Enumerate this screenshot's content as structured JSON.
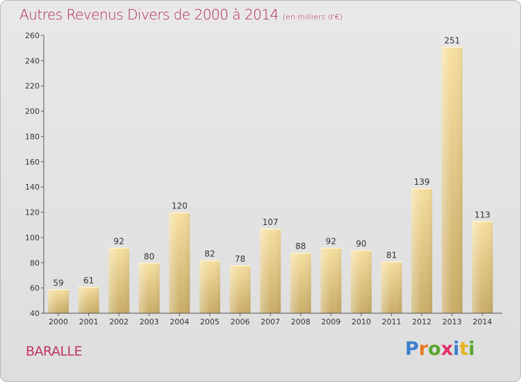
{
  "header": {
    "title": "Autres Revenus Divers de 2000 à 2014",
    "unit": "(en milliers d'€)"
  },
  "footer": {
    "commune": "BARALLE",
    "brand": [
      "P",
      "r",
      "o",
      "x",
      "i",
      "t",
      "i"
    ],
    "brand_colors": [
      "#3b7fd0",
      "#e87a1e",
      "#5aa62e",
      "#e02f6a",
      "#3b7fd0",
      "#e8b31e",
      "#5aa62e"
    ]
  },
  "colors": {
    "bar_light": "#f5dc9c",
    "bar_dark": "#c8ac66",
    "axis": "#555555",
    "title": "#b5264d"
  },
  "chart_data": {
    "type": "bar",
    "categories": [
      "2000",
      "2001",
      "2002",
      "2003",
      "2004",
      "2005",
      "2006",
      "2007",
      "2008",
      "2009",
      "2010",
      "2011",
      "2012",
      "2013",
      "2014"
    ],
    "values": [
      59,
      61,
      92,
      80,
      120,
      82,
      78,
      107,
      88,
      92,
      90,
      81,
      139,
      251,
      113
    ],
    "title": "Autres Revenus Divers de 2000 à 2014",
    "xlabel": "",
    "ylabel": "",
    "ylim": [
      40,
      260
    ],
    "yticks": [
      40,
      60,
      80,
      100,
      120,
      140,
      160,
      180,
      200,
      220,
      240,
      260
    ],
    "grid": false,
    "legend": "none"
  }
}
